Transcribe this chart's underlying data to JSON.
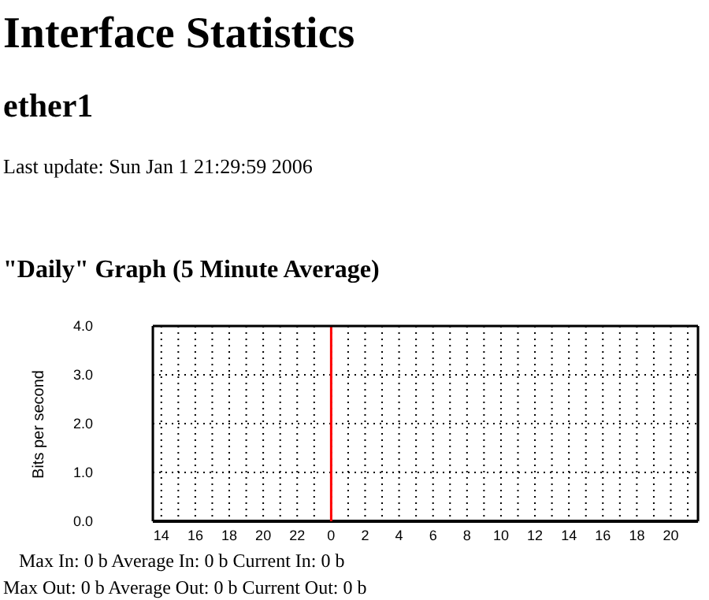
{
  "chart_data": {
    "type": "line",
    "title": "Interface Statistics",
    "subtitle": "ether1",
    "annotations": [
      "Last update: Sun Jan 1 21:29:59 2006",
      "\"Daily\" Graph (5 Minute Average)",
      "Max In: 0 b    Average In: 0 b    Current In: 0 b",
      "Max Out: 0 b  Average Out: 0 b  Current Out: 0 b"
    ],
    "ylabel": "Bits per second",
    "x": [
      "2005-12-31T13:30",
      "2006-01-01T21:36"
    ],
    "series": [
      {
        "color": "#000000",
        "values": [
          0,
          0
        ]
      }
    ],
    "xlim": [
      "2005-12-31T13:30",
      "2006-01-01T21:36"
    ],
    "xticks": [
      {
        "value": "2005-12-31T14:00",
        "label": "14"
      },
      {
        "value": "2005-12-31T15:00",
        "label": null
      },
      {
        "value": "2005-12-31T16:00",
        "label": "16"
      },
      {
        "value": "2005-12-31T17:00",
        "label": null
      },
      {
        "value": "2005-12-31T18:00",
        "label": "18"
      },
      {
        "value": "2005-12-31T19:00",
        "label": null
      },
      {
        "value": "2005-12-31T20:00",
        "label": "20"
      },
      {
        "value": "2005-12-31T21:00",
        "label": null
      },
      {
        "value": "2005-12-31T22:00",
        "label": "22"
      },
      {
        "value": "2005-12-31T23:00",
        "label": null
      },
      {
        "value": "2006-01-01T00:00",
        "label": "0"
      },
      {
        "value": "2006-01-01T01:00",
        "label": null
      },
      {
        "value": "2006-01-01T02:00",
        "label": "2"
      },
      {
        "value": "2006-01-01T03:00",
        "label": null
      },
      {
        "value": "2006-01-01T04:00",
        "label": "4"
      },
      {
        "value": "2006-01-01T05:00",
        "label": null
      },
      {
        "value": "2006-01-01T06:00",
        "label": "6"
      },
      {
        "value": "2006-01-01T07:00",
        "label": null
      },
      {
        "value": "2006-01-01T08:00",
        "label": "8"
      },
      {
        "value": "2006-01-01T09:00",
        "label": null
      },
      {
        "value": "2006-01-01T10:00",
        "label": "10"
      },
      {
        "value": "2006-01-01T11:00",
        "label": null
      },
      {
        "value": "2006-01-01T12:00",
        "label": "12"
      },
      {
        "value": "2006-01-01T13:00",
        "label": null
      },
      {
        "value": "2006-01-01T14:00",
        "label": "14"
      },
      {
        "value": "2006-01-01T15:00",
        "label": null
      },
      {
        "value": "2006-01-01T16:00",
        "label": "16"
      },
      {
        "value": "2006-01-01T17:00",
        "label": null
      },
      {
        "value": "2006-01-01T18:00",
        "label": "18"
      },
      {
        "value": "2006-01-01T19:00",
        "label": null
      },
      {
        "value": "2006-01-01T20:00",
        "label": "20"
      },
      {
        "value": "2006-01-01T21:00",
        "label": null
      }
    ],
    "ylim": [
      0,
      4
    ],
    "yticks": [
      {
        "value": 0,
        "label": "0.0"
      },
      {
        "value": 1,
        "label": "1.0"
      },
      {
        "value": 2,
        "label": "2.0"
      },
      {
        "value": 3,
        "label": "3.0"
      },
      {
        "value": 4,
        "label": "4.0"
      }
    ],
    "grid": true,
    "ref_lines": [
      {
        "axis": "x",
        "value": "2006-01-01T00:00",
        "color": "#ff0000"
      }
    ]
  }
}
